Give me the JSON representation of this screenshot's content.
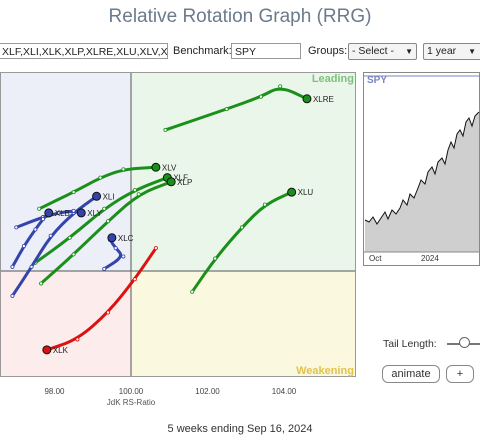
{
  "title": "Relative Rotation Graph (RRG)",
  "toolbar": {
    "symbols_value": "XLF,XLI,XLK,XLP,XLRE,XLU,XLV,XL",
    "benchmark_label": "Benchmark:",
    "benchmark_value": "SPY",
    "groups_label": "Groups:",
    "groups_value": "- Select -",
    "period_value": "1 year"
  },
  "quadrants": {
    "leading": "Leading",
    "weakening": "Weakening"
  },
  "x_axis": {
    "label": "JdK RS-Ratio",
    "ticks": [
      "98.00",
      "100.00",
      "102.00",
      "104.00"
    ]
  },
  "mini_chart": {
    "symbol": "SPY",
    "x_ticks": [
      "Oct",
      "2024"
    ]
  },
  "controls": {
    "tail_length_label": "Tail Length:",
    "animate_label": "animate",
    "plus_label": "+"
  },
  "footer": "5 weeks ending Sep 16, 2024",
  "colors": {
    "green": "#1a8f1a",
    "blue": "#3344aa",
    "red": "#dd1111",
    "leading_bg": "#eaf6ea",
    "weakening_bg": "#fbf8e0",
    "lagging_bg": "#fcecec",
    "improving_bg": "#eceef8"
  },
  "chart_data": {
    "type": "scatter",
    "xlabel": "JdK RS-Ratio",
    "ylabel": "",
    "xlim": [
      96.8,
      105.8
    ],
    "series": [
      {
        "name": "XLRE",
        "color": "green",
        "x": [
          100.9,
          102.5,
          103.4,
          103.9,
          104.6
        ],
        "y": [
          103.4,
          103.9,
          104.2,
          104.45,
          104.15
        ]
      },
      {
        "name": "XLV",
        "color": "green",
        "x": [
          97.6,
          98.5,
          99.2,
          99.8,
          100.65
        ],
        "y": [
          101.5,
          101.9,
          102.25,
          102.45,
          102.5
        ]
      },
      {
        "name": "XLF",
        "color": "green",
        "x": [
          97.5,
          98.4,
          99.3,
          100.1,
          100.95
        ],
        "y": [
          100.2,
          100.8,
          101.5,
          101.95,
          102.25
        ]
      },
      {
        "name": "XLP",
        "color": "green",
        "x": [
          97.65,
          98.5,
          99.4,
          100.2,
          101.05
        ],
        "y": [
          99.7,
          100.4,
          101.2,
          101.85,
          102.15
        ]
      },
      {
        "name": "XLU",
        "color": "green",
        "x": [
          101.6,
          102.2,
          102.9,
          103.5,
          104.2
        ],
        "y": [
          99.5,
          100.3,
          101.05,
          101.6,
          101.9
        ]
      },
      {
        "name": "XLI",
        "color": "blue",
        "x": [
          96.9,
          97.4,
          97.9,
          98.5,
          99.1
        ],
        "y": [
          99.4,
          100.1,
          100.85,
          101.4,
          101.8
        ]
      },
      {
        "name": "XLY",
        "color": "blue",
        "x": [
          97.0,
          97.7,
          98.1,
          98.5,
          98.7
        ],
        "y": [
          101.05,
          101.3,
          101.4,
          101.45,
          101.4
        ]
      },
      {
        "name": "XLC",
        "color": "blue",
        "x": [
          99.3,
          99.8,
          99.6,
          99.45,
          99.5
        ],
        "y": [
          100.05,
          100.35,
          100.55,
          100.75,
          100.8
        ]
      },
      {
        "name": "XLB",
        "color": "blue",
        "x": [
          96.9,
          97.2,
          97.5,
          97.7,
          97.85
        ],
        "y": [
          100.1,
          100.6,
          101.0,
          101.25,
          101.4
        ]
      },
      {
        "name": "XLK",
        "color": "red",
        "x": [
          100.65,
          100.1,
          99.4,
          98.6,
          97.8
        ],
        "y": [
          100.55,
          99.8,
          99.0,
          98.35,
          98.1
        ]
      }
    ]
  }
}
